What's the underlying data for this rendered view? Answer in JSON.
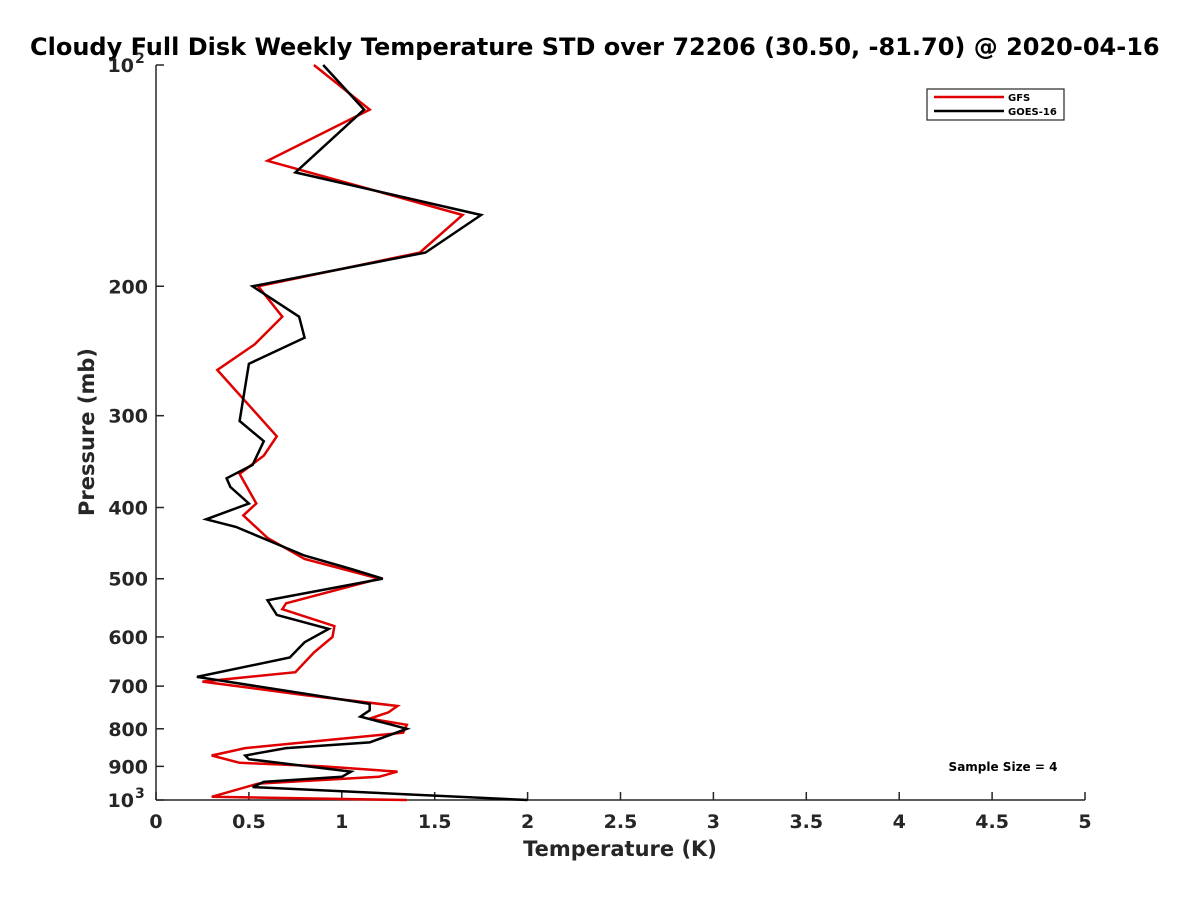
{
  "chart_data": {
    "type": "line",
    "title": "Cloudy Full Disk Weekly Temperature STD over 72206 (30.50, -81.70) @ 2020-04-16",
    "xlabel": "Temperature (K)",
    "ylabel": "Pressure (mb)",
    "xlim": [
      0,
      5
    ],
    "ylim": [
      100,
      1000
    ],
    "y_scale": "log",
    "y_reversed": true,
    "x_ticks": [
      "0",
      "0.5",
      "1",
      "1.5",
      "2",
      "2.5",
      "3",
      "3.5",
      "4",
      "4.5",
      "5"
    ],
    "y_ticks": [
      {
        "value": 100,
        "base": "10",
        "exp": "2"
      },
      {
        "value": 200,
        "label": "200"
      },
      {
        "value": 300,
        "label": "300"
      },
      {
        "value": 400,
        "label": "400"
      },
      {
        "value": 500,
        "label": "500"
      },
      {
        "value": 600,
        "label": "600"
      },
      {
        "value": 700,
        "label": "700"
      },
      {
        "value": 800,
        "label": "800"
      },
      {
        "value": 900,
        "label": "900"
      },
      {
        "value": 1000,
        "base": "10",
        "exp": "3"
      }
    ],
    "legend_position": "top-right",
    "annotation": "Sample Size = 4",
    "series": [
      {
        "name": "GFS",
        "color": "#e00000",
        "points": [
          [
            0.85,
            100
          ],
          [
            1.15,
            115
          ],
          [
            0.6,
            135
          ],
          [
            1.65,
            160
          ],
          [
            1.42,
            180
          ],
          [
            0.55,
            200
          ],
          [
            0.68,
            220
          ],
          [
            0.53,
            240
          ],
          [
            0.33,
            260
          ],
          [
            0.65,
            320
          ],
          [
            0.58,
            340
          ],
          [
            0.45,
            360
          ],
          [
            0.54,
            395
          ],
          [
            0.47,
            410
          ],
          [
            0.6,
            440
          ],
          [
            0.8,
            470
          ],
          [
            1.2,
            500
          ],
          [
            0.7,
            540
          ],
          [
            0.68,
            550
          ],
          [
            0.96,
            580
          ],
          [
            0.95,
            600
          ],
          [
            0.85,
            630
          ],
          [
            0.75,
            670
          ],
          [
            0.25,
            690
          ],
          [
            0.8,
            720
          ],
          [
            1.3,
            745
          ],
          [
            1.25,
            760
          ],
          [
            1.15,
            775
          ],
          [
            1.35,
            790
          ],
          [
            1.33,
            810
          ],
          [
            0.48,
            850
          ],
          [
            0.3,
            870
          ],
          [
            0.45,
            890
          ],
          [
            0.9,
            900
          ],
          [
            1.3,
            915
          ],
          [
            1.2,
            930
          ],
          [
            0.55,
            950
          ],
          [
            0.3,
            990
          ],
          [
            1.35,
            1000
          ]
        ]
      },
      {
        "name": "GOES-16",
        "color": "#000000",
        "points": [
          [
            0.9,
            100
          ],
          [
            1.12,
            115
          ],
          [
            0.75,
            140
          ],
          [
            1.75,
            160
          ],
          [
            1.45,
            180
          ],
          [
            0.52,
            200
          ],
          [
            0.77,
            220
          ],
          [
            0.8,
            235
          ],
          [
            0.5,
            255
          ],
          [
            0.45,
            305
          ],
          [
            0.58,
            325
          ],
          [
            0.52,
            350
          ],
          [
            0.38,
            365
          ],
          [
            0.4,
            375
          ],
          [
            0.5,
            395
          ],
          [
            0.27,
            415
          ],
          [
            0.43,
            425
          ],
          [
            0.8,
            465
          ],
          [
            1.05,
            485
          ],
          [
            1.22,
            500
          ],
          [
            0.6,
            535
          ],
          [
            0.65,
            560
          ],
          [
            0.93,
            585
          ],
          [
            0.8,
            610
          ],
          [
            0.72,
            640
          ],
          [
            0.22,
            680
          ],
          [
            0.85,
            720
          ],
          [
            1.15,
            740
          ],
          [
            1.15,
            755
          ],
          [
            1.1,
            770
          ],
          [
            1.35,
            800
          ],
          [
            1.15,
            835
          ],
          [
            0.7,
            850
          ],
          [
            0.48,
            870
          ],
          [
            0.5,
            880
          ],
          [
            1.05,
            915
          ],
          [
            1.0,
            930
          ],
          [
            0.58,
            945
          ],
          [
            0.52,
            960
          ],
          [
            2.0,
            1000
          ]
        ]
      }
    ]
  }
}
